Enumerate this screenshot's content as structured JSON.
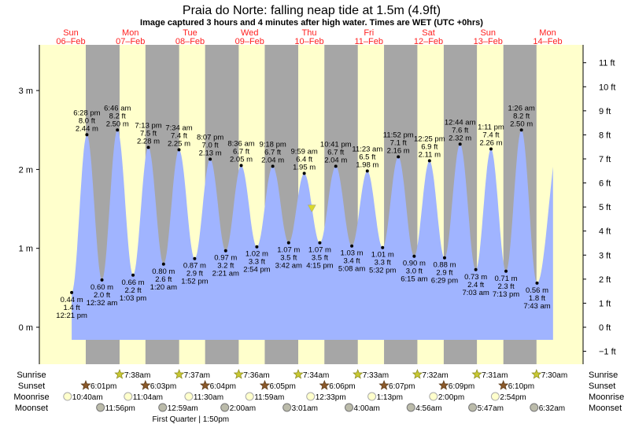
{
  "header": {
    "title": "Praia do Norte: falling  neap tide at 1.5m (4.9ft)",
    "subtitle": "Image captured 3 hours and 4 minutes after high water. Times are WET (UTC +0hrs)"
  },
  "days": [
    {
      "name": "Sun",
      "date": "06–Feb"
    },
    {
      "name": "Mon",
      "date": "07–Feb"
    },
    {
      "name": "Tue",
      "date": "08–Feb"
    },
    {
      "name": "Wed",
      "date": "09–Feb"
    },
    {
      "name": "Thu",
      "date": "10–Feb"
    },
    {
      "name": "Fri",
      "date": "11–Feb"
    },
    {
      "name": "Sat",
      "date": "12–Feb"
    },
    {
      "name": "Sun",
      "date": "13–Feb"
    },
    {
      "name": "Mon",
      "date": "14–Feb"
    }
  ],
  "colors": {
    "day": "#ffffcc",
    "night": "#a6a6a6",
    "water": "#a0b4ff",
    "day_label": "#ff2020",
    "marker": "#d8d82a",
    "sunset": "#8b5a2b",
    "moonrise": "#ffffcc",
    "moonset": "#bbbbaa"
  },
  "chart_data": {
    "type": "area",
    "title": "Praia do Norte: falling  neap tide at 1.5m (4.9ft)",
    "ylabel_left": "m",
    "ylabel_right": "ft",
    "ylim_m": [
      -0.47,
      3.58
    ],
    "left_ticks": [
      "0 m",
      "1 m",
      "2 m",
      "3 m"
    ],
    "left_tick_values": [
      0,
      1,
      2,
      3
    ],
    "right_ticks": [
      "−1 ft",
      "0 ft",
      "1 ft",
      "2 ft",
      "3 ft",
      "4 ft",
      "5 ft",
      "6 ft",
      "7 ft",
      "8 ft",
      "9 ft",
      "10 ft",
      "11 ft"
    ],
    "right_tick_values": [
      -1,
      0,
      1,
      2,
      3,
      4,
      5,
      6,
      7,
      8,
      9,
      10,
      11
    ],
    "extremes": [
      {
        "day": 0,
        "time": "12:21 pm",
        "m": "0.44 m",
        "ft": "1.4 ft",
        "h": 0.44,
        "type": "low"
      },
      {
        "day": 0,
        "time": "6:28 pm",
        "m": "2.44 m",
        "ft": "8.0 ft",
        "h": 2.44,
        "type": "high"
      },
      {
        "day": 1,
        "time": "12:32 am",
        "m": "0.60 m",
        "ft": "2.0 ft",
        "h": 0.6,
        "type": "low"
      },
      {
        "day": 1,
        "time": "6:46 am",
        "m": "2.50 m",
        "ft": "8.2 ft",
        "h": 2.5,
        "type": "high"
      },
      {
        "day": 1,
        "time": "1:03 pm",
        "m": "0.66 m",
        "ft": "2.2 ft",
        "h": 0.66,
        "type": "low"
      },
      {
        "day": 1,
        "time": "7:13 pm",
        "m": "2.28 m",
        "ft": "7.5 ft",
        "h": 2.28,
        "type": "high"
      },
      {
        "day": 2,
        "time": "1:20 am",
        "m": "0.80 m",
        "ft": "2.6 ft",
        "h": 0.8,
        "type": "low"
      },
      {
        "day": 2,
        "time": "7:34 am",
        "m": "2.25 m",
        "ft": "7.4 ft",
        "h": 2.25,
        "type": "high"
      },
      {
        "day": 2,
        "time": "1:52 pm",
        "m": "0.87 m",
        "ft": "2.9 ft",
        "h": 0.87,
        "type": "low"
      },
      {
        "day": 2,
        "time": "8:07 pm",
        "m": "2.13 m",
        "ft": "7.0 ft",
        "h": 2.13,
        "type": "high"
      },
      {
        "day": 3,
        "time": "2:21 am",
        "m": "0.97 m",
        "ft": "3.2 ft",
        "h": 0.97,
        "type": "low"
      },
      {
        "day": 3,
        "time": "8:36 am",
        "m": "2.05 m",
        "ft": "6.7 ft",
        "h": 2.05,
        "type": "high"
      },
      {
        "day": 3,
        "time": "2:54 pm",
        "m": "1.02 m",
        "ft": "3.3 ft",
        "h": 1.02,
        "type": "low"
      },
      {
        "day": 3,
        "time": "9:18 pm",
        "m": "2.04 m",
        "ft": "6.7 ft",
        "h": 2.04,
        "type": "high"
      },
      {
        "day": 4,
        "time": "3:42 am",
        "m": "1.07 m",
        "ft": "3.5 ft",
        "h": 1.07,
        "type": "low"
      },
      {
        "day": 4,
        "time": "9:59 am",
        "m": "1.95 m",
        "ft": "6.4 ft",
        "h": 1.95,
        "type": "high"
      },
      {
        "day": 4,
        "time": "4:15 pm",
        "m": "1.07 m",
        "ft": "3.5 ft",
        "h": 1.07,
        "type": "low"
      },
      {
        "day": 4,
        "time": "10:41 pm",
        "m": "2.04 m",
        "ft": "6.7 ft",
        "h": 2.04,
        "type": "high"
      },
      {
        "day": 5,
        "time": "5:08 am",
        "m": "1.03 m",
        "ft": "3.4 ft",
        "h": 1.03,
        "type": "low"
      },
      {
        "day": 5,
        "time": "11:23 am",
        "m": "1.98 m",
        "ft": "6.5 ft",
        "h": 1.98,
        "type": "high"
      },
      {
        "day": 5,
        "time": "5:32 pm",
        "m": "1.01 m",
        "ft": "3.3 ft",
        "h": 1.01,
        "type": "low"
      },
      {
        "day": 5,
        "time": "11:52 pm",
        "m": "2.16 m",
        "ft": "7.1 ft",
        "h": 2.16,
        "type": "high"
      },
      {
        "day": 6,
        "time": "6:15 am",
        "m": "0.90 m",
        "ft": "3.0 ft",
        "h": 0.9,
        "type": "low"
      },
      {
        "day": 6,
        "time": "12:25 pm",
        "m": "2.11 m",
        "ft": "6.9 ft",
        "h": 2.11,
        "type": "high"
      },
      {
        "day": 6,
        "time": "6:29 pm",
        "m": "0.88 m",
        "ft": "2.9 ft",
        "h": 0.88,
        "type": "low"
      },
      {
        "day": 7,
        "time": "12:44 am",
        "m": "2.32 m",
        "ft": "7.6 ft",
        "h": 2.32,
        "type": "high"
      },
      {
        "day": 7,
        "time": "7:03 am",
        "m": "0.73 m",
        "ft": "2.4 ft",
        "h": 0.73,
        "type": "low"
      },
      {
        "day": 7,
        "time": "1:11 pm",
        "m": "2.26 m",
        "ft": "7.4 ft",
        "h": 2.26,
        "type": "high"
      },
      {
        "day": 7,
        "time": "7:13 pm",
        "m": "0.71 m",
        "ft": "2.3 ft",
        "h": 0.71,
        "type": "low"
      },
      {
        "day": 8,
        "time": "1:26 am",
        "m": "2.50 m",
        "ft": "8.2 ft",
        "h": 2.5,
        "type": "high"
      },
      {
        "day": 8,
        "time": "7:43 am",
        "m": "0.56 m",
        "ft": "1.8 ft",
        "h": 0.56,
        "type": "low"
      }
    ],
    "curve_end": {
      "day": 8,
      "time": "2:10 pm",
      "h": 2.0
    },
    "current": {
      "day": 4,
      "time": "1:03 pm",
      "h": 1.5
    }
  },
  "rows": {
    "labels": [
      "Sunrise",
      "Sunset",
      "Moonrise",
      "Moonset"
    ],
    "sunrise": [
      {
        "day": 1,
        "time": "7:38am"
      },
      {
        "day": 2,
        "time": "7:37am"
      },
      {
        "day": 3,
        "time": "7:36am"
      },
      {
        "day": 4,
        "time": "7:34am"
      },
      {
        "day": 5,
        "time": "7:33am"
      },
      {
        "day": 6,
        "time": "7:32am"
      },
      {
        "day": 7,
        "time": "7:31am"
      },
      {
        "day": 8,
        "time": "7:30am"
      }
    ],
    "sunset": [
      {
        "day": 0,
        "time": "6:01pm"
      },
      {
        "day": 1,
        "time": "6:03pm"
      },
      {
        "day": 2,
        "time": "6:04pm"
      },
      {
        "day": 3,
        "time": "6:05pm"
      },
      {
        "day": 4,
        "time": "6:06pm"
      },
      {
        "day": 5,
        "time": "6:07pm"
      },
      {
        "day": 6,
        "time": "6:09pm"
      },
      {
        "day": 7,
        "time": "6:10pm"
      }
    ],
    "moonrise": [
      {
        "day": 0,
        "time": "10:40am"
      },
      {
        "day": 1,
        "time": "11:04am"
      },
      {
        "day": 2,
        "time": "11:30am"
      },
      {
        "day": 3,
        "time": "11:59am"
      },
      {
        "day": 4,
        "time": "12:33pm"
      },
      {
        "day": 5,
        "time": "1:13pm"
      },
      {
        "day": 6,
        "time": "2:00pm"
      },
      {
        "day": 7,
        "time": "2:54pm"
      }
    ],
    "moonset": [
      {
        "day": 0,
        "time": "11:56pm"
      },
      {
        "day": 2,
        "time": "12:59am"
      },
      {
        "day": 3,
        "time": "2:00am"
      },
      {
        "day": 4,
        "time": "3:01am"
      },
      {
        "day": 5,
        "time": "4:00am"
      },
      {
        "day": 6,
        "time": "4:56am"
      },
      {
        "day": 7,
        "time": "5:47am"
      },
      {
        "day": 8,
        "time": "6:32am"
      }
    ],
    "moon_phase": {
      "day": 2,
      "time": "1:50pm",
      "text": "First Quarter | 1:50pm"
    }
  }
}
